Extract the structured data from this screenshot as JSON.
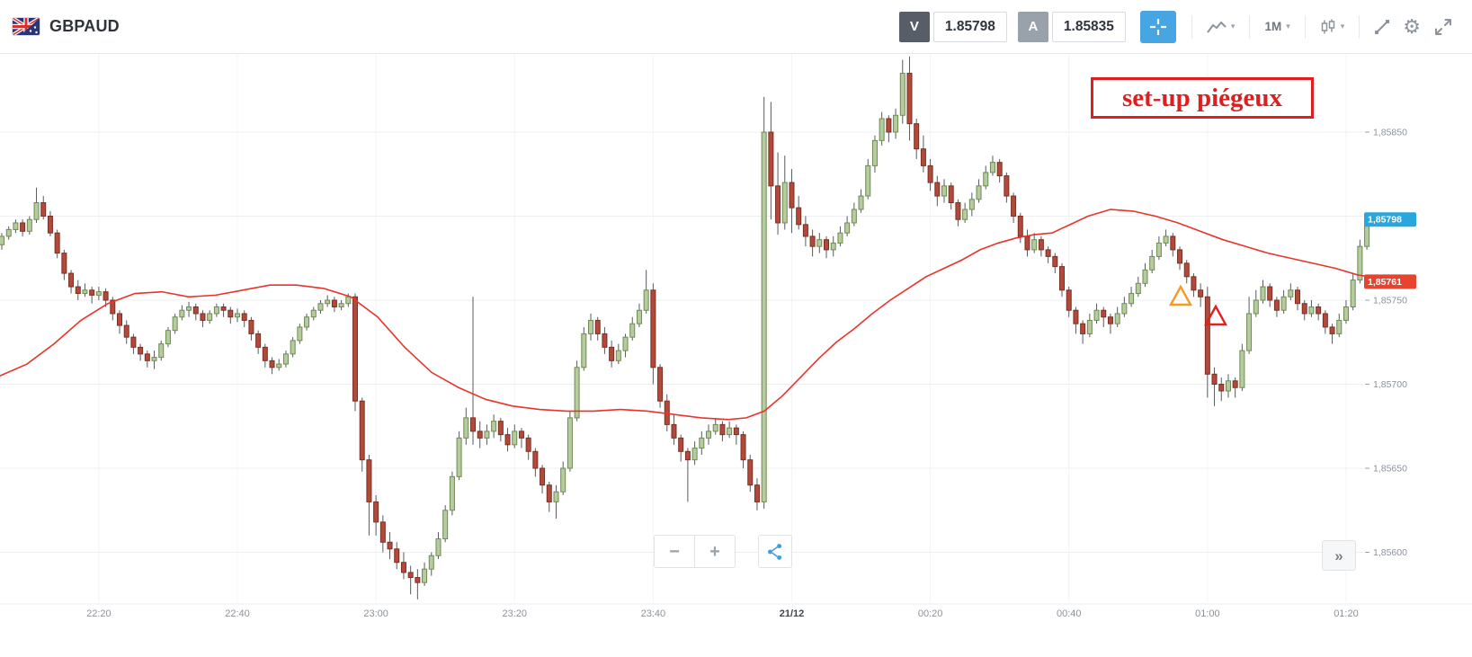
{
  "header": {
    "symbol": "GBPAUD",
    "sell": {
      "label": "V",
      "price": "1.85798"
    },
    "buy": {
      "label": "A",
      "price": "1.85835"
    },
    "timeframe": {
      "label": "1M"
    }
  },
  "icons": {
    "gear": "⚙",
    "caret_down": "▾"
  },
  "annotations": {
    "note": {
      "text": "set-up piégeux",
      "color": "#dd1f1f"
    },
    "triangles": [
      {
        "name": "orange-triangle-marker",
        "x": 1313,
        "y_page": 330,
        "color": "#f59b22"
      },
      {
        "name": "red-triangle-marker",
        "x": 1352,
        "y_page": 352,
        "color": "#e01f1f"
      }
    ]
  },
  "price_axis": {
    "labels": [
      {
        "text": "1,85850",
        "pips": 850
      },
      {
        "text": "1,85750",
        "pips": 750
      },
      {
        "text": "1,85700",
        "pips": 700
      },
      {
        "text": "1,85650",
        "pips": 650
      },
      {
        "text": "1,85600",
        "pips": 600
      }
    ],
    "gridline_pips": [
      850,
      800,
      750,
      700,
      650,
      600
    ],
    "badges": [
      {
        "text": "1,85798",
        "pips": 798,
        "color": "#2aa6df"
      },
      {
        "text": "1,85761",
        "pips": 761,
        "color": "#e8432e"
      }
    ]
  },
  "time_axis": {
    "labels": [
      {
        "text": "22:20",
        "t": 14
      },
      {
        "text": "22:40",
        "t": 34
      },
      {
        "text": "23:00",
        "t": 54
      },
      {
        "text": "23:20",
        "t": 74
      },
      {
        "text": "23:40",
        "t": 94
      },
      {
        "text": "21/12",
        "t": 114,
        "emphasis": true
      },
      {
        "text": "00:20",
        "t": 134
      },
      {
        "text": "00:40",
        "t": 154
      },
      {
        "text": "01:00",
        "t": 174
      },
      {
        "text": "01:20",
        "t": 194
      }
    ]
  },
  "chart_controls": {
    "zoom_out": "−",
    "zoom_in": "+",
    "collapse": "»"
  },
  "chart_data": {
    "type": "candlestick",
    "symbol": "GBPAUD",
    "interval": "1M",
    "first_candle_time": "22:06",
    "price_base": 1.85,
    "pip": 1e-05,
    "ylim": [
      1.85572,
      1.85895
    ],
    "current_price": 1.85798,
    "colors": {
      "up": "#b5cd9e",
      "up_border": "#6f8a52",
      "down": "#b2493b",
      "down_border": "#7a2f23",
      "wick": "#565b61"
    },
    "candles_ohlc_pips": [
      [
        783,
        790,
        780,
        788
      ],
      [
        788,
        794,
        786,
        792
      ],
      [
        792,
        798,
        790,
        796
      ],
      [
        796,
        798,
        788,
        791
      ],
      [
        791,
        800,
        789,
        798
      ],
      [
        798,
        817,
        796,
        808
      ],
      [
        808,
        812,
        798,
        800
      ],
      [
        800,
        803,
        788,
        790
      ],
      [
        790,
        792,
        775,
        778
      ],
      [
        778,
        780,
        762,
        766
      ],
      [
        766,
        768,
        754,
        758
      ],
      [
        758,
        762,
        750,
        754
      ],
      [
        754,
        760,
        752,
        756
      ],
      [
        756,
        758,
        748,
        753
      ],
      [
        753,
        758,
        750,
        755
      ],
      [
        755,
        757,
        746,
        750
      ],
      [
        750,
        752,
        738,
        742
      ],
      [
        742,
        744,
        730,
        735
      ],
      [
        735,
        738,
        724,
        728
      ],
      [
        728,
        730,
        718,
        722
      ],
      [
        722,
        724,
        714,
        718
      ],
      [
        718,
        720,
        710,
        714
      ],
      [
        714,
        720,
        709,
        716
      ],
      [
        716,
        726,
        714,
        724
      ],
      [
        724,
        734,
        722,
        732
      ],
      [
        732,
        742,
        730,
        740
      ],
      [
        740,
        747,
        738,
        744
      ],
      [
        744,
        749,
        740,
        746
      ],
      [
        746,
        748,
        738,
        742
      ],
      [
        742,
        744,
        734,
        738
      ],
      [
        738,
        744,
        736,
        742
      ],
      [
        742,
        748,
        740,
        746
      ],
      [
        746,
        748,
        740,
        744
      ],
      [
        744,
        746,
        736,
        740
      ],
      [
        740,
        745,
        737,
        742
      ],
      [
        742,
        744,
        734,
        738
      ],
      [
        738,
        740,
        726,
        730
      ],
      [
        730,
        732,
        718,
        722
      ],
      [
        722,
        724,
        710,
        714
      ],
      [
        714,
        716,
        706,
        710
      ],
      [
        710,
        715,
        708,
        712
      ],
      [
        712,
        720,
        710,
        718
      ],
      [
        718,
        728,
        716,
        726
      ],
      [
        726,
        736,
        724,
        734
      ],
      [
        734,
        742,
        732,
        740
      ],
      [
        740,
        746,
        738,
        744
      ],
      [
        744,
        750,
        742,
        748
      ],
      [
        748,
        753,
        746,
        750
      ],
      [
        750,
        752,
        743,
        746
      ],
      [
        746,
        750,
        744,
        748
      ],
      [
        748,
        754,
        746,
        752
      ],
      [
        752,
        754,
        684,
        690
      ],
      [
        690,
        692,
        648,
        655
      ],
      [
        655,
        658,
        610,
        630
      ],
      [
        630,
        634,
        610,
        618
      ],
      [
        618,
        622,
        600,
        606
      ],
      [
        606,
        612,
        596,
        602
      ],
      [
        602,
        606,
        590,
        594
      ],
      [
        594,
        600,
        584,
        588
      ],
      [
        588,
        592,
        575,
        585
      ],
      [
        585,
        590,
        572,
        582
      ],
      [
        582,
        594,
        580,
        590
      ],
      [
        590,
        600,
        586,
        598
      ],
      [
        598,
        612,
        596,
        608
      ],
      [
        608,
        628,
        606,
        625
      ],
      [
        625,
        648,
        622,
        645
      ],
      [
        645,
        672,
        643,
        668
      ],
      [
        668,
        686,
        664,
        680
      ],
      [
        680,
        752,
        664,
        672
      ],
      [
        672,
        678,
        662,
        668
      ],
      [
        668,
        676,
        664,
        672
      ],
      [
        672,
        682,
        668,
        678
      ],
      [
        678,
        680,
        666,
        670
      ],
      [
        670,
        674,
        660,
        664
      ],
      [
        664,
        676,
        662,
        672
      ],
      [
        672,
        674,
        662,
        668
      ],
      [
        668,
        670,
        655,
        660
      ],
      [
        660,
        662,
        645,
        650
      ],
      [
        650,
        652,
        635,
        640
      ],
      [
        640,
        642,
        624,
        630
      ],
      [
        630,
        640,
        620,
        636
      ],
      [
        636,
        654,
        634,
        650
      ],
      [
        650,
        684,
        648,
        680
      ],
      [
        680,
        714,
        678,
        710
      ],
      [
        710,
        734,
        708,
        730
      ],
      [
        730,
        742,
        726,
        738
      ],
      [
        738,
        740,
        726,
        730
      ],
      [
        730,
        734,
        718,
        722
      ],
      [
        722,
        726,
        710,
        714
      ],
      [
        714,
        724,
        712,
        720
      ],
      [
        720,
        730,
        716,
        728
      ],
      [
        728,
        740,
        726,
        736
      ],
      [
        736,
        748,
        734,
        744
      ],
      [
        744,
        768,
        742,
        756
      ],
      [
        756,
        760,
        700,
        710
      ],
      [
        710,
        712,
        686,
        690
      ],
      [
        690,
        694,
        672,
        676
      ],
      [
        676,
        682,
        664,
        668
      ],
      [
        668,
        670,
        654,
        660
      ],
      [
        660,
        662,
        630,
        655
      ],
      [
        655,
        666,
        652,
        662
      ],
      [
        662,
        672,
        658,
        668
      ],
      [
        668,
        676,
        664,
        672
      ],
      [
        672,
        680,
        670,
        676
      ],
      [
        676,
        678,
        666,
        670
      ],
      [
        670,
        678,
        668,
        674
      ],
      [
        674,
        676,
        664,
        670
      ],
      [
        670,
        672,
        650,
        655
      ],
      [
        655,
        658,
        636,
        640
      ],
      [
        640,
        644,
        625,
        630
      ],
      [
        630,
        871,
        626,
        850
      ],
      [
        850,
        868,
        798,
        818
      ],
      [
        818,
        838,
        789,
        796
      ],
      [
        796,
        836,
        792,
        820
      ],
      [
        820,
        828,
        790,
        805
      ],
      [
        805,
        812,
        792,
        795
      ],
      [
        795,
        800,
        782,
        788
      ],
      [
        788,
        792,
        776,
        782
      ],
      [
        782,
        790,
        778,
        786
      ],
      [
        786,
        788,
        775,
        780
      ],
      [
        780,
        788,
        776,
        784
      ],
      [
        784,
        794,
        782,
        790
      ],
      [
        790,
        800,
        788,
        796
      ],
      [
        796,
        808,
        794,
        804
      ],
      [
        804,
        816,
        802,
        812
      ],
      [
        812,
        834,
        810,
        830
      ],
      [
        830,
        848,
        826,
        845
      ],
      [
        845,
        862,
        842,
        858
      ],
      [
        858,
        860,
        844,
        850
      ],
      [
        850,
        864,
        846,
        860
      ],
      [
        860,
        893,
        855,
        885
      ],
      [
        885,
        895,
        845,
        855
      ],
      [
        855,
        858,
        834,
        840
      ],
      [
        840,
        848,
        826,
        830
      ],
      [
        830,
        834,
        815,
        820
      ],
      [
        820,
        824,
        806,
        812
      ],
      [
        812,
        822,
        808,
        818
      ],
      [
        818,
        820,
        804,
        808
      ],
      [
        808,
        810,
        794,
        798
      ],
      [
        798,
        808,
        796,
        804
      ],
      [
        804,
        814,
        800,
        810
      ],
      [
        810,
        822,
        808,
        818
      ],
      [
        818,
        830,
        816,
        826
      ],
      [
        826,
        836,
        824,
        832
      ],
      [
        832,
        834,
        820,
        824
      ],
      [
        824,
        826,
        808,
        812
      ],
      [
        812,
        814,
        796,
        800
      ],
      [
        800,
        802,
        784,
        788
      ],
      [
        788,
        792,
        776,
        780
      ],
      [
        780,
        790,
        778,
        786
      ],
      [
        786,
        788,
        776,
        780
      ],
      [
        780,
        782,
        772,
        776
      ],
      [
        776,
        778,
        766,
        770
      ],
      [
        770,
        772,
        752,
        756
      ],
      [
        756,
        758,
        740,
        744
      ],
      [
        744,
        746,
        730,
        736
      ],
      [
        736,
        738,
        724,
        730
      ],
      [
        730,
        742,
        728,
        738
      ],
      [
        738,
        748,
        736,
        744
      ],
      [
        744,
        746,
        734,
        740
      ],
      [
        740,
        742,
        730,
        736
      ],
      [
        736,
        746,
        734,
        742
      ],
      [
        742,
        752,
        740,
        748
      ],
      [
        748,
        758,
        746,
        754
      ],
      [
        754,
        764,
        752,
        760
      ],
      [
        760,
        772,
        758,
        768
      ],
      [
        768,
        780,
        766,
        776
      ],
      [
        776,
        788,
        774,
        784
      ],
      [
        784,
        792,
        782,
        788
      ],
      [
        788,
        790,
        776,
        780
      ],
      [
        780,
        782,
        768,
        772
      ],
      [
        772,
        774,
        760,
        764
      ],
      [
        764,
        766,
        752,
        756
      ],
      [
        756,
        760,
        746,
        752
      ],
      [
        752,
        758,
        692,
        706
      ],
      [
        706,
        710,
        687,
        700
      ],
      [
        700,
        704,
        690,
        696
      ],
      [
        696,
        706,
        692,
        702
      ],
      [
        702,
        704,
        692,
        698
      ],
      [
        698,
        724,
        696,
        720
      ],
      [
        720,
        752,
        718,
        742
      ],
      [
        742,
        756,
        740,
        750
      ],
      [
        750,
        762,
        748,
        758
      ],
      [
        758,
        760,
        746,
        750
      ],
      [
        750,
        752,
        740,
        744
      ],
      [
        744,
        756,
        742,
        752
      ],
      [
        752,
        760,
        750,
        756
      ],
      [
        756,
        758,
        744,
        748
      ],
      [
        748,
        750,
        738,
        742
      ],
      [
        742,
        750,
        740,
        746
      ],
      [
        746,
        748,
        738,
        742
      ],
      [
        742,
        744,
        730,
        734
      ],
      [
        734,
        736,
        724,
        730
      ],
      [
        730,
        742,
        728,
        738
      ],
      [
        738,
        750,
        736,
        746
      ],
      [
        746,
        766,
        744,
        762
      ],
      [
        762,
        786,
        760,
        782
      ],
      [
        782,
        802,
        780,
        798
      ]
    ],
    "ma_line": {
      "color": "#e8342a",
      "points_x_pips": [
        [
          0,
          705
        ],
        [
          30,
          712
        ],
        [
          60,
          724
        ],
        [
          90,
          738
        ],
        [
          120,
          748
        ],
        [
          150,
          754
        ],
        [
          180,
          755
        ],
        [
          210,
          752
        ],
        [
          240,
          753
        ],
        [
          270,
          756
        ],
        [
          300,
          759
        ],
        [
          330,
          759
        ],
        [
          360,
          757
        ],
        [
          390,
          752
        ],
        [
          420,
          740
        ],
        [
          450,
          722
        ],
        [
          480,
          707
        ],
        [
          510,
          698
        ],
        [
          540,
          691
        ],
        [
          570,
          687
        ],
        [
          600,
          685
        ],
        [
          630,
          684
        ],
        [
          660,
          684
        ],
        [
          690,
          685
        ],
        [
          720,
          684
        ],
        [
          750,
          682
        ],
        [
          780,
          680
        ],
        [
          810,
          679
        ],
        [
          830,
          680
        ],
        [
          850,
          684
        ],
        [
          870,
          693
        ],
        [
          890,
          704
        ],
        [
          910,
          715
        ],
        [
          930,
          725
        ],
        [
          950,
          733
        ],
        [
          970,
          742
        ],
        [
          990,
          750
        ],
        [
          1010,
          757
        ],
        [
          1030,
          764
        ],
        [
          1050,
          769
        ],
        [
          1070,
          774
        ],
        [
          1090,
          780
        ],
        [
          1110,
          784
        ],
        [
          1130,
          787
        ],
        [
          1150,
          789
        ],
        [
          1170,
          790
        ],
        [
          1190,
          795
        ],
        [
          1210,
          800
        ],
        [
          1235,
          804
        ],
        [
          1260,
          803
        ],
        [
          1285,
          800
        ],
        [
          1310,
          796
        ],
        [
          1335,
          791
        ],
        [
          1360,
          786
        ],
        [
          1385,
          782
        ],
        [
          1410,
          778
        ],
        [
          1435,
          775
        ],
        [
          1460,
          772
        ],
        [
          1485,
          769
        ],
        [
          1510,
          765
        ],
        [
          1522,
          764
        ]
      ]
    }
  }
}
